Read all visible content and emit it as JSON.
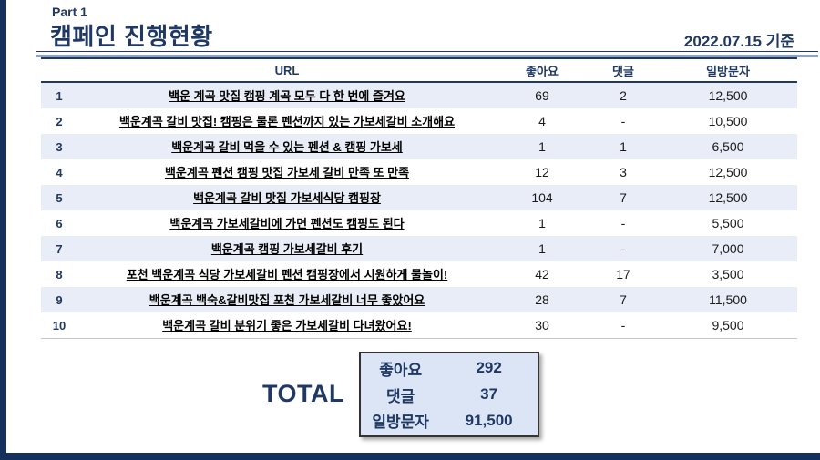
{
  "header": {
    "part_label": "Part 1",
    "title": "캠페인 진행현황",
    "date_note": "2022.07.15 기준"
  },
  "colors": {
    "accent_navy": "#1f3864",
    "frame_navy": "#16305e",
    "alt_row_bg": "#e9edf7",
    "total_box_bg": "#dbe5f6",
    "title_rule_gray": "#8ea3c4"
  },
  "table": {
    "columns": [
      "URL",
      "좋아요",
      "댓글",
      "일방문자"
    ],
    "rows": [
      {
        "no": "1",
        "url": "백운 계곡 맛집 캠핑 계곡 모두 다 한 번에 즐겨요",
        "likes": "69",
        "comments": "2",
        "visitors": "12,500"
      },
      {
        "no": "2",
        "url": "백운계곡 갈비 맛집! 캠핑은 물론 펜션까지 있는 가보세갈비 소개해요",
        "likes": "4",
        "comments": "-",
        "visitors": "10,500"
      },
      {
        "no": "3",
        "url": "백운계곡 갈비 먹을 수 있는 펜션 & 캠핑 가보세",
        "likes": "1",
        "comments": "1",
        "visitors": "6,500"
      },
      {
        "no": "4",
        "url": "백운계곡 펜션 캠핑 맛집 가보세 갈비 만족 또 만족",
        "likes": "12",
        "comments": "3",
        "visitors": "12,500"
      },
      {
        "no": "5",
        "url": "백운계곡 갈비 맛집 가보세식당 캠핑장",
        "likes": "104",
        "comments": "7",
        "visitors": "12,500"
      },
      {
        "no": "6",
        "url": "백운계곡 가보세갈비에 가면 펜션도 캠핑도 된다",
        "likes": "1",
        "comments": "-",
        "visitors": "5,500"
      },
      {
        "no": "7",
        "url": "백운계곡 캠핑 가보세갈비 후기",
        "likes": "1",
        "comments": "-",
        "visitors": "7,000"
      },
      {
        "no": "8",
        "url": "포천 백운계곡 식당 가보세갈비 펜션 캠핑장에서 시원하게 물놀이!",
        "likes": "42",
        "comments": "17",
        "visitors": "3,500"
      },
      {
        "no": "9",
        "url": "백운계곡 백숙&갈비맛집 포천 가보세갈비 너무 좋았어요",
        "likes": "28",
        "comments": "7",
        "visitors": "11,500"
      },
      {
        "no": "10",
        "url": "백운계곡 갈비 분위기 좋은 가보세갈비 다녀왔어요!",
        "likes": "30",
        "comments": "-",
        "visitors": "9,500"
      }
    ]
  },
  "totals": {
    "label": "TOTAL",
    "rows": [
      {
        "label": "좋아요",
        "value": "292"
      },
      {
        "label": "댓글",
        "value": "37"
      },
      {
        "label": "일방문자",
        "value": "91,500"
      }
    ]
  }
}
